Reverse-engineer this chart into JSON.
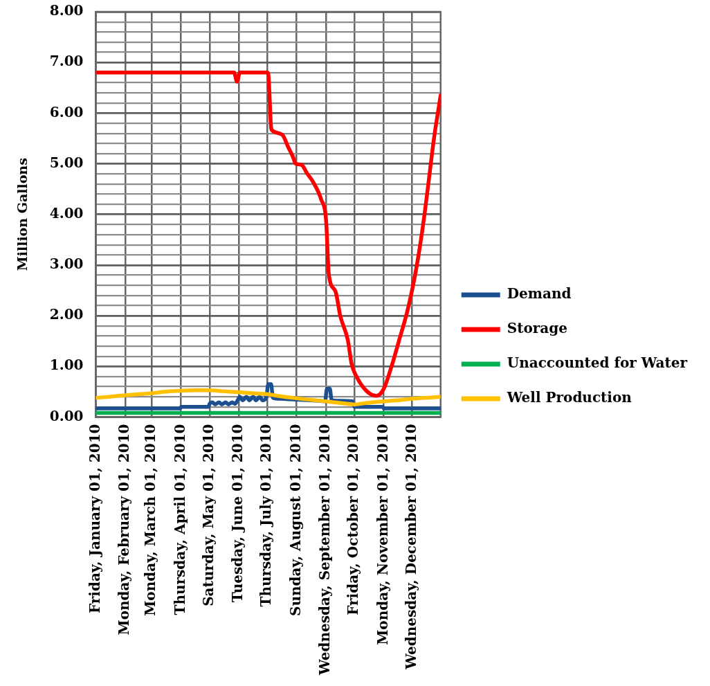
{
  "chart_data": {
    "type": "line",
    "ylabel": "Million Gallons",
    "xlim": [
      "2010-01-01",
      "2010-12-31"
    ],
    "xticks": [
      {
        "value": "2010-01-01",
        "label": "Friday, January 01, 2010"
      },
      {
        "value": "2010-02-01",
        "label": "Monday, February 01, 2010"
      },
      {
        "value": "2010-03-01",
        "label": "Monday, March 01, 2010"
      },
      {
        "value": "2010-04-01",
        "label": "Thursday, April 01, 2010"
      },
      {
        "value": "2010-05-01",
        "label": "Saturday, May 01, 2010"
      },
      {
        "value": "2010-06-01",
        "label": "Tuesday, June 01, 2010"
      },
      {
        "value": "2010-07-01",
        "label": "Thursday, July 01, 2010"
      },
      {
        "value": "2010-08-01",
        "label": "Sunday, August 01, 2010"
      },
      {
        "value": "2010-09-01",
        "label": "Wednesday, September 01, 2010"
      },
      {
        "value": "2010-10-01",
        "label": "Friday, October 01, 2010"
      },
      {
        "value": "2010-11-01",
        "label": "Monday, November 01, 2010"
      },
      {
        "value": "2010-12-01",
        "label": "Wednesday, December 01, 2010"
      }
    ],
    "ylim": [
      0,
      8
    ],
    "yticks": [
      {
        "value": 0,
        "label": "0.00"
      },
      {
        "value": 0.2,
        "label": null
      },
      {
        "value": 0.4,
        "label": null
      },
      {
        "value": 0.6,
        "label": null
      },
      {
        "value": 0.8,
        "label": null
      },
      {
        "value": 1,
        "label": "1.00"
      },
      {
        "value": 1.2,
        "label": null
      },
      {
        "value": 1.4,
        "label": null
      },
      {
        "value": 1.6,
        "label": null
      },
      {
        "value": 1.8,
        "label": null
      },
      {
        "value": 2,
        "label": "2.00"
      },
      {
        "value": 2.2,
        "label": null
      },
      {
        "value": 2.4,
        "label": null
      },
      {
        "value": 2.6,
        "label": null
      },
      {
        "value": 2.8,
        "label": null
      },
      {
        "value": 3,
        "label": "3.00"
      },
      {
        "value": 3.2,
        "label": null
      },
      {
        "value": 3.4,
        "label": null
      },
      {
        "value": 3.6,
        "label": null
      },
      {
        "value": 3.8,
        "label": null
      },
      {
        "value": 4,
        "label": "4.00"
      },
      {
        "value": 4.2,
        "label": null
      },
      {
        "value": 4.4,
        "label": null
      },
      {
        "value": 4.6,
        "label": null
      },
      {
        "value": 4.8,
        "label": null
      },
      {
        "value": 5,
        "label": "5.00"
      },
      {
        "value": 5.2,
        "label": null
      },
      {
        "value": 5.4,
        "label": null
      },
      {
        "value": 5.6,
        "label": null
      },
      {
        "value": 5.8,
        "label": null
      },
      {
        "value": 6,
        "label": "6.00"
      },
      {
        "value": 6.2,
        "label": null
      },
      {
        "value": 6.4,
        "label": null
      },
      {
        "value": 6.6,
        "label": null
      },
      {
        "value": 6.8,
        "label": null
      },
      {
        "value": 7,
        "label": "7.00"
      },
      {
        "value": 7.2,
        "label": null
      },
      {
        "value": 7.4,
        "label": null
      },
      {
        "value": 7.6,
        "label": null
      },
      {
        "value": 7.8,
        "label": null
      },
      {
        "value": 8,
        "label": "8.00"
      }
    ],
    "grid": true,
    "legend": "right",
    "series": [
      {
        "name": "Demand",
        "color": "#1c4f8f",
        "x": [
          "2010-01-01",
          "2010-03-31",
          "2010-04-01",
          "2010-04-30",
          "2010-05-01",
          "2010-05-04",
          "2010-05-07",
          "2010-05-11",
          "2010-05-14",
          "2010-05-18",
          "2010-05-21",
          "2010-05-25",
          "2010-05-28",
          "2010-05-31",
          "2010-06-02",
          "2010-06-05",
          "2010-06-09",
          "2010-06-12",
          "2010-06-16",
          "2010-06-19",
          "2010-06-23",
          "2010-06-26",
          "2010-06-30",
          "2010-07-02",
          "2010-07-05",
          "2010-07-07",
          "2010-07-15",
          "2010-07-25",
          "2010-08-05",
          "2010-08-15",
          "2010-08-25",
          "2010-08-31",
          "2010-09-02",
          "2010-09-05",
          "2010-09-07",
          "2010-09-15",
          "2010-09-29",
          "2010-10-01",
          "2010-10-31",
          "2010-11-01",
          "2010-12-31"
        ],
        "values": [
          0.17,
          0.17,
          0.2,
          0.2,
          0.26,
          0.29,
          0.25,
          0.29,
          0.25,
          0.29,
          0.25,
          0.29,
          0.26,
          0.34,
          0.4,
          0.33,
          0.4,
          0.33,
          0.4,
          0.33,
          0.4,
          0.33,
          0.39,
          0.65,
          0.65,
          0.38,
          0.36,
          0.35,
          0.34,
          0.33,
          0.32,
          0.31,
          0.56,
          0.56,
          0.33,
          0.32,
          0.31,
          0.2,
          0.2,
          0.17,
          0.17
        ]
      },
      {
        "name": "Storage",
        "color": "#ff0000",
        "x": [
          "2010-01-01",
          "2010-05-27",
          "2010-05-30",
          "2010-06-02",
          "2010-07-01",
          "2010-07-02",
          "2010-07-05",
          "2010-07-06",
          "2010-07-17",
          "2010-07-23",
          "2010-07-28",
          "2010-07-31",
          "2010-08-06",
          "2010-08-12",
          "2010-08-19",
          "2010-08-27",
          "2010-09-01",
          "2010-09-04",
          "2010-09-11",
          "2010-09-16",
          "2010-09-24",
          "2010-09-28",
          "2010-10-04",
          "2010-10-14",
          "2010-10-24",
          "2010-10-28",
          "2010-11-02",
          "2010-11-10",
          "2010-11-18",
          "2010-11-26",
          "2010-12-04",
          "2010-12-09",
          "2010-12-14",
          "2010-12-19",
          "2010-12-24",
          "2010-12-31"
        ],
        "values": [
          6.8,
          6.8,
          6.62,
          6.8,
          6.8,
          6.78,
          5.72,
          5.66,
          5.57,
          5.33,
          5.14,
          5.0,
          4.98,
          4.81,
          4.62,
          4.29,
          3.9,
          2.81,
          2.48,
          2.0,
          1.52,
          1.05,
          0.77,
          0.51,
          0.42,
          0.45,
          0.6,
          1.05,
          1.57,
          2.1,
          2.8,
          3.35,
          4.0,
          4.75,
          5.5,
          6.35
        ]
      },
      {
        "name": "Unaccounted for Water",
        "color": "#00b050",
        "x": [
          "2010-01-01",
          "2010-12-31"
        ],
        "values": [
          0.08,
          0.08
        ]
      },
      {
        "name": "Well Production",
        "color": "#ffc000",
        "x": [
          "2010-01-01",
          "2010-01-15",
          "2010-02-01",
          "2010-02-15",
          "2010-03-01",
          "2010-03-15",
          "2010-04-01",
          "2010-04-15",
          "2010-05-01",
          "2010-05-15",
          "2010-06-01",
          "2010-06-15",
          "2010-07-01",
          "2010-07-15",
          "2010-08-01",
          "2010-08-15",
          "2010-09-01",
          "2010-09-15",
          "2010-10-01",
          "2010-10-15",
          "2010-11-01",
          "2010-11-15",
          "2010-12-01",
          "2010-12-15",
          "2010-12-31"
        ],
        "values": [
          0.38,
          0.4,
          0.43,
          0.45,
          0.47,
          0.5,
          0.52,
          0.53,
          0.53,
          0.51,
          0.49,
          0.47,
          0.45,
          0.41,
          0.37,
          0.34,
          0.31,
          0.28,
          0.25,
          0.28,
          0.31,
          0.33,
          0.36,
          0.38,
          0.4
        ]
      }
    ]
  }
}
